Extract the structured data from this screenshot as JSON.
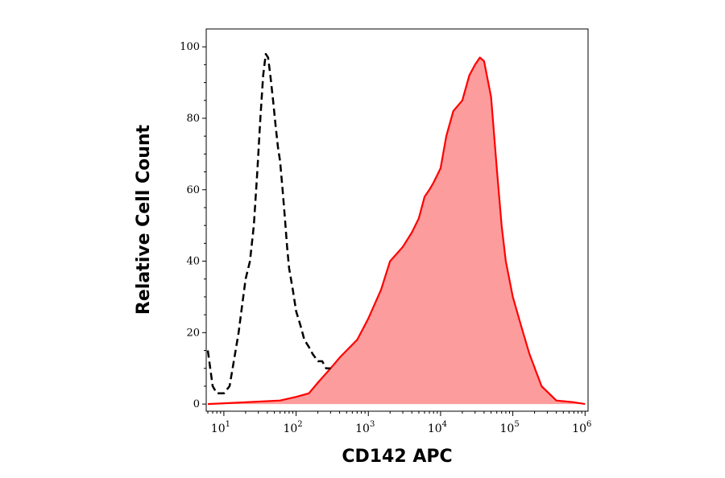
{
  "chart_data": {
    "type": "area",
    "xlabel": "CD142 APC",
    "ylabel": "Relative Cell Count",
    "x_scale": "log",
    "xlim": [
      5.7,
      1100000
    ],
    "ylim": [
      -2,
      105
    ],
    "y_ticks": [
      {
        "value": 0,
        "label": "0"
      },
      {
        "value": 20,
        "label": "20"
      },
      {
        "value": 40,
        "label": "40"
      },
      {
        "value": 60,
        "label": "60"
      },
      {
        "value": 80,
        "label": "80"
      },
      {
        "value": 100,
        "label": "100"
      }
    ],
    "x_ticks": [
      {
        "value": 10,
        "base": "10",
        "exp": "1"
      },
      {
        "value": 100,
        "base": "10",
        "exp": "2"
      },
      {
        "value": 1000,
        "base": "10",
        "exp": "3"
      },
      {
        "value": 10000,
        "base": "10",
        "exp": "4"
      },
      {
        "value": 100000,
        "base": "10",
        "exp": "5"
      },
      {
        "value": 1000000,
        "base": "10",
        "exp": "6"
      }
    ],
    "grid": false,
    "series": [
      {
        "style": "dashed-outline",
        "color": "#000000",
        "x": [
          6,
          7,
          8,
          10,
          12,
          14,
          16,
          18,
          20,
          23,
          26,
          29,
          32,
          35,
          38,
          41,
          44,
          48,
          52,
          56,
          60,
          65,
          70,
          75,
          80,
          90,
          100,
          115,
          130,
          150,
          170,
          200,
          230,
          260,
          300
        ],
        "y": [
          15,
          5,
          3,
          3,
          5,
          13,
          20,
          28,
          35,
          40,
          50,
          65,
          80,
          92,
          98,
          97,
          92,
          85,
          78,
          72,
          68,
          60,
          52,
          44,
          38,
          32,
          26,
          22,
          18,
          16,
          14,
          12,
          12,
          10,
          10
        ]
      },
      {
        "style": "filled",
        "color": "#ff0000",
        "fill": "#fc9c9c",
        "x": [
          6,
          20,
          60,
          100,
          150,
          200,
          300,
          400,
          500,
          700,
          1000,
          1500,
          2000,
          3000,
          4000,
          5000,
          6000,
          7000,
          8000,
          10000,
          12000,
          15000,
          20000,
          25000,
          30000,
          35000,
          40000,
          50000,
          60000,
          70000,
          80000,
          100000,
          130000,
          170000,
          250000,
          400000,
          700000,
          1000000
        ],
        "y": [
          0,
          0.5,
          1,
          2,
          3,
          6,
          10,
          13,
          15,
          18,
          24,
          32,
          40,
          44,
          48,
          52,
          58,
          60,
          62,
          66,
          75,
          82,
          85,
          92,
          95,
          97,
          96,
          86,
          66,
          50,
          40,
          30,
          22,
          14,
          5,
          1,
          0.5,
          0
        ]
      }
    ]
  }
}
